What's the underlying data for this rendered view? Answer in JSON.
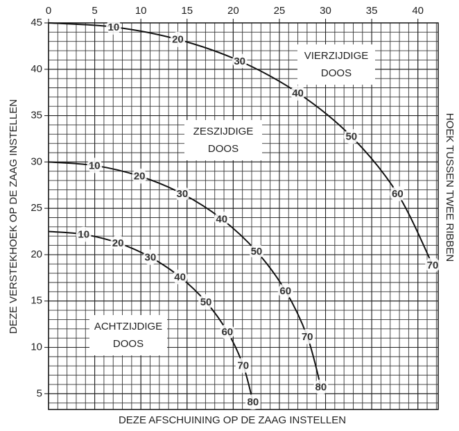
{
  "chart_data": {
    "type": "line",
    "x_label": "DEZE AFSCHUINING OP DE ZAAG INSTELLEN",
    "y_label": "DEZE VERSTEKHOEK OP DE ZAAG INSTELLEN",
    "right_label": "HOEK TUSSEN TWEE RIBBEN",
    "xlim": [
      0,
      42.2
    ],
    "ylim": [
      3.3,
      45
    ],
    "xticks": [
      0,
      5,
      10,
      15,
      20,
      25,
      30,
      35,
      40
    ],
    "yticks": [
      5,
      10,
      15,
      20,
      25,
      30,
      35,
      40,
      45
    ],
    "minor_grid_step": 1,
    "grid": true,
    "series": [
      {
        "color": "#111",
        "x": [
          0,
          7.05,
          14.0,
          20.7,
          27.0,
          32.8,
          37.8,
          41.6
        ],
        "values": [
          45,
          44.56,
          43.22,
          40.89,
          37.45,
          32.74,
          26.57,
          18.88
        ],
        "labels": [
          null,
          10,
          20,
          30,
          40,
          50,
          60,
          70
        ]
      },
      {
        "color": "#111",
        "x": [
          0,
          4.98,
          9.85,
          14.48,
          18.75,
          22.52,
          25.66,
          28.02,
          29.5
        ],
        "values": [
          30,
          29.62,
          28.48,
          26.57,
          23.86,
          20.36,
          16.1,
          11.17,
          5.72
        ],
        "labels": [
          null,
          10,
          20,
          30,
          40,
          50,
          60,
          70,
          80
        ]
      },
      {
        "color": "#111",
        "x": [
          0,
          3.81,
          7.52,
          11.03,
          14.24,
          17.05,
          19.36,
          21.08,
          22.14
        ],
        "values": [
          22.5,
          22.19,
          21.27,
          19.73,
          17.6,
          14.91,
          11.7,
          8.06,
          4.11
        ],
        "labels": [
          null,
          10,
          20,
          30,
          40,
          50,
          60,
          70,
          80
        ]
      }
    ],
    "annotations": [
      {
        "lines": [
          "VIERZIJDIGE",
          "DOOS"
        ]
      },
      {
        "lines": [
          "ZESZIJDIGE",
          "DOOS"
        ]
      },
      {
        "lines": [
          "ACHTZIJDIGE",
          "DOOS"
        ]
      }
    ]
  }
}
